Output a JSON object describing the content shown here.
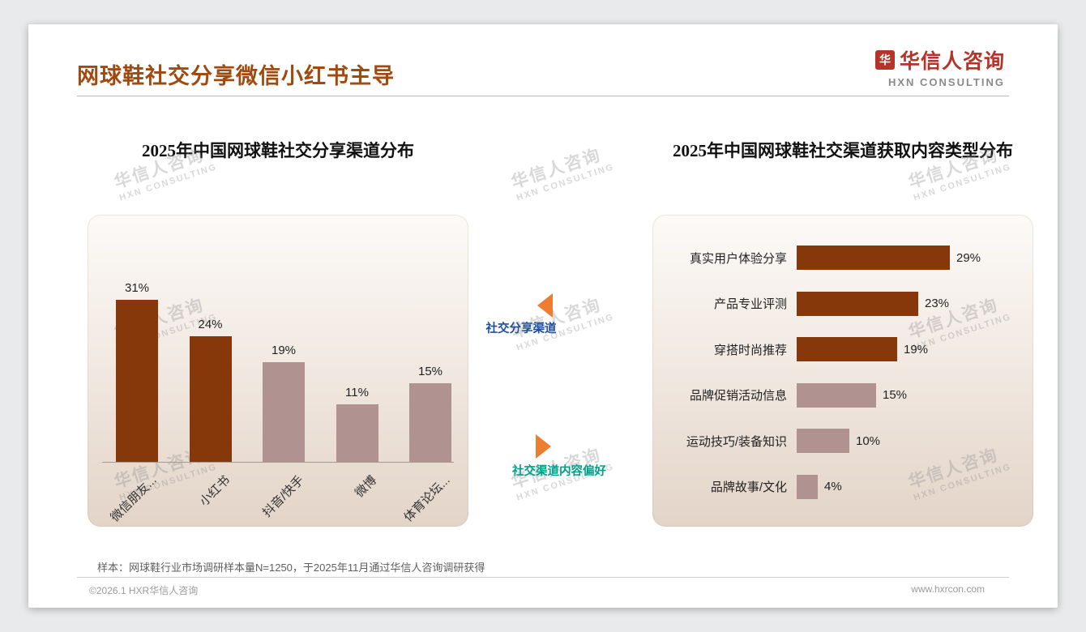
{
  "slide": {
    "title": "网球鞋社交分享微信小红书主导",
    "logo": {
      "mark": "华",
      "name": "华信人咨询",
      "subtitle": "HXN CONSULTING"
    },
    "watermark": {
      "line1": "华信人咨询",
      "line2": "HXN CONSULTING"
    },
    "note": "样本：网球鞋行业市场调研样本量N=1250，于2025年11月通过华信人咨询调研获得",
    "footer": {
      "left": "©2026.1 HXR华信人咨询",
      "right": "www.hxrcon.com"
    }
  },
  "annotations": {
    "share_channel_label": "社交分享渠道",
    "content_preference_label": "社交渠道内容偏好"
  },
  "colors": {
    "title": "#A04A0F",
    "dark_bar": "#86380A",
    "light_bar": "#B09290",
    "accent_orange": "#ED7D31",
    "share_label": "#1F4E9C",
    "content_label": "#00A08B",
    "logo_red": "#B5342A"
  },
  "chart_data": [
    {
      "type": "bar",
      "orientation": "vertical",
      "title": "2025年中国网球鞋社交分享渠道分布",
      "categories": [
        "微信朋友...",
        "小红书",
        "抖音/快手",
        "微博",
        "体育论坛..."
      ],
      "values": [
        31,
        24,
        19,
        11,
        15
      ],
      "unit": "%",
      "bar_palette": [
        "dark",
        "dark",
        "light",
        "light",
        "light"
      ],
      "ylim": [
        0,
        35
      ],
      "grid": false,
      "legend": false
    },
    {
      "type": "bar",
      "orientation": "horizontal",
      "title": "2025年中国网球鞋社交渠道获取内容类型分布",
      "categories": [
        "真实用户体验分享",
        "产品专业评测",
        "穿搭时尚推荐",
        "品牌促销活动信息",
        "运动技巧/装备知识",
        "品牌故事/文化"
      ],
      "values": [
        29,
        23,
        19,
        15,
        10,
        4
      ],
      "unit": "%",
      "bar_palette": [
        "dark",
        "dark",
        "dark",
        "light",
        "light",
        "light"
      ],
      "xlim": [
        0,
        32
      ],
      "grid": false,
      "legend": false
    }
  ]
}
